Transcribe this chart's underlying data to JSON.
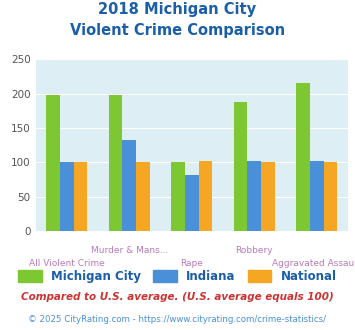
{
  "title_line1": "2018 Michigan City",
  "title_line2": "Violent Crime Comparison",
  "categories": [
    "All Violent Crime",
    "Murder & Mans...",
    "Rape",
    "Robbery",
    "Aggravated Assault"
  ],
  "cat_labels_upper": [
    "",
    "Murder & Mans...",
    "",
    "Robbery",
    ""
  ],
  "cat_labels_lower": [
    "All Violent Crime",
    "",
    "Rape",
    "",
    "Aggravated Assault"
  ],
  "series": {
    "Michigan City": [
      198,
      198,
      100,
      188,
      216
    ],
    "Indiana": [
      101,
      133,
      82,
      102,
      102
    ],
    "National": [
      101,
      101,
      102,
      101,
      101
    ]
  },
  "colors": {
    "Michigan City": "#7dc832",
    "Indiana": "#4a90d9",
    "National": "#f5a623"
  },
  "ylim": [
    0,
    250
  ],
  "yticks": [
    0,
    50,
    100,
    150,
    200,
    250
  ],
  "plot_bg": "#ddeef5",
  "title_color": "#1a5fa8",
  "xlabel_upper_color": "#b87ab8",
  "xlabel_lower_color": "#b87ab8",
  "legend_label_color": "#1a5fa8",
  "footnote1": "Compared to U.S. average. (U.S. average equals 100)",
  "footnote2": "© 2025 CityRating.com - https://www.cityrating.com/crime-statistics/",
  "footnote1_color": "#cc3333",
  "footnote2_color": "#4a90d9"
}
